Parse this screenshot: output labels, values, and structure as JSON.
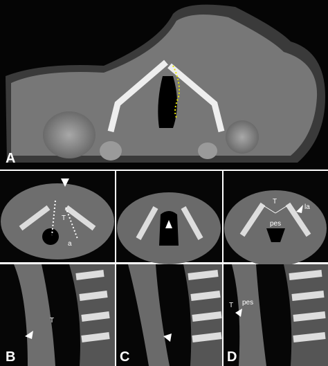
{
  "figure": {
    "panels": [
      {
        "letter": "A"
      },
      {
        "letter": "B",
        "axial_labels": [
          "T",
          "a"
        ],
        "sagittal_labels": [
          "T"
        ]
      },
      {
        "letter": "C"
      },
      {
        "letter": "D",
        "axial_labels": [
          "T",
          "pes",
          "la"
        ],
        "sagittal_labels": [
          "T",
          "pes"
        ]
      }
    ]
  }
}
